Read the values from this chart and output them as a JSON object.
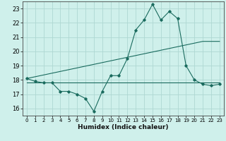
{
  "xlabel": "Humidex (Indice chaleur)",
  "background_color": "#cff0eb",
  "grid_color": "#aed8d2",
  "line_color": "#1a6b5e",
  "xlim": [
    -0.5,
    23.5
  ],
  "ylim": [
    15.5,
    23.5
  ],
  "yticks": [
    16,
    17,
    18,
    19,
    20,
    21,
    22,
    23
  ],
  "xticks": [
    0,
    1,
    2,
    3,
    4,
    5,
    6,
    7,
    8,
    9,
    10,
    11,
    12,
    13,
    14,
    15,
    16,
    17,
    18,
    19,
    20,
    21,
    22,
    23
  ],
  "series1_x": [
    0,
    1,
    2,
    3,
    4,
    5,
    6,
    7,
    8,
    9,
    10,
    11,
    12,
    13,
    14,
    15,
    16,
    17,
    18,
    19,
    20,
    21,
    22,
    23
  ],
  "series1_y": [
    18.1,
    17.9,
    17.8,
    17.8,
    17.2,
    17.2,
    17.0,
    16.7,
    15.8,
    17.2,
    18.3,
    18.3,
    19.5,
    21.5,
    22.2,
    23.3,
    22.2,
    22.8,
    22.3,
    19.0,
    18.0,
    17.7,
    17.6,
    17.7
  ],
  "series2_x": [
    0,
    23
  ],
  "series2_y": [
    17.8,
    17.8
  ],
  "series3_x": [
    0,
    21,
    23
  ],
  "series3_y": [
    18.1,
    20.7,
    20.7
  ]
}
